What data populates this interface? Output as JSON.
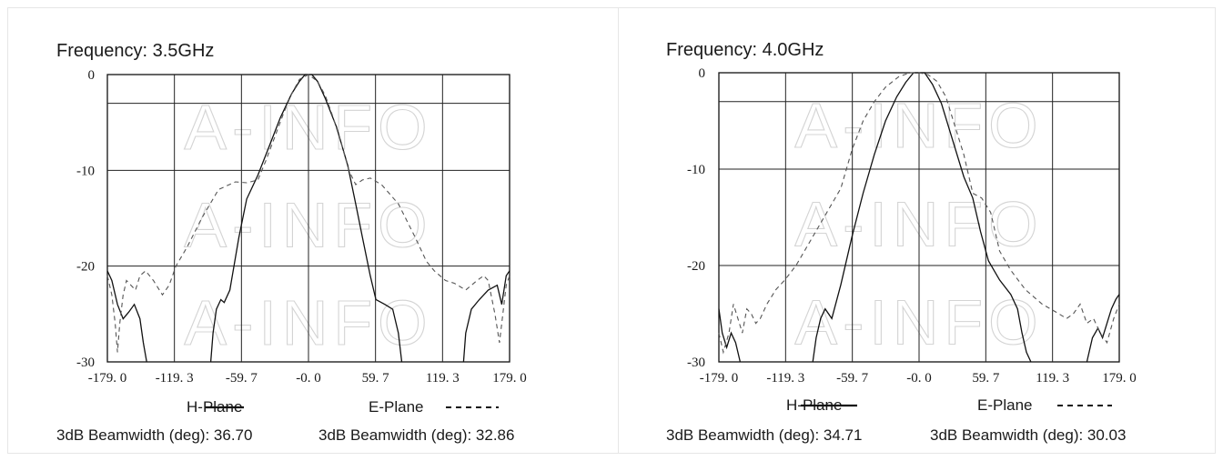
{
  "watermark": "A-INFO",
  "chart_data": [
    {
      "type": "line",
      "title": "Frequency: 3.5GHz",
      "x_ticks": [
        "-179. 0",
        "-119. 3",
        "-59. 7",
        "-0. 0",
        "59. 7",
        "119. 3",
        "179. 0"
      ],
      "y_ticks": [
        "0",
        "-10",
        "-20",
        "-30"
      ],
      "xlim": [
        -179.0,
        179.0
      ],
      "ylim": [
        -30,
        0
      ],
      "grid": true,
      "legend": {
        "h_label": "H-Plane",
        "e_label": "E-Plane"
      },
      "beamwidth": {
        "h_text": "3dB Beamwidth (deg): 36.70",
        "e_text": "3dB Beamwidth (deg): 32.86"
      },
      "series": [
        {
          "name": "H-Plane",
          "style": "solid",
          "segments": [
            [
              [
                -179,
                -20.5
              ],
              [
                -175,
                -21.5
              ],
              [
                -170,
                -24
              ],
              [
                -165,
                -25.5
              ],
              [
                -160,
                -24.8
              ],
              [
                -155,
                -24
              ],
              [
                -150,
                -25.5
              ],
              [
                -147,
                -28
              ],
              [
                -144,
                -30
              ]
            ],
            [
              [
                -87,
                -30
              ],
              [
                -85,
                -27
              ],
              [
                -82,
                -24.5
              ],
              [
                -78,
                -23.5
              ],
              [
                -75,
                -23.8
              ],
              [
                -70,
                -22.5
              ],
              [
                -62,
                -17
              ],
              [
                -55,
                -13
              ],
              [
                -45,
                -10.5
              ],
              [
                -35,
                -7.5
              ],
              [
                -25,
                -4.5
              ],
              [
                -15,
                -2
              ],
              [
                -8,
                -0.7
              ],
              [
                -3,
                0
              ],
              [
                0,
                0
              ],
              [
                3,
                0
              ],
              [
                8,
                -0.7
              ],
              [
                15,
                -2.5
              ],
              [
                25,
                -5.5
              ],
              [
                35,
                -9.5
              ],
              [
                42,
                -13.5
              ],
              [
                48,
                -17
              ],
              [
                55,
                -21
              ],
              [
                60,
                -23.5
              ],
              [
                68,
                -24
              ],
              [
                75,
                -24.5
              ],
              [
                80,
                -27
              ],
              [
                83,
                -30
              ]
            ],
            [
              [
                138,
                -30
              ],
              [
                140,
                -27
              ],
              [
                145,
                -24.5
              ],
              [
                152,
                -23.5
              ],
              [
                160,
                -22.5
              ],
              [
                168,
                -22
              ],
              [
                172,
                -24
              ],
              [
                176,
                -21
              ],
              [
                179,
                -20.5
              ]
            ]
          ]
        },
        {
          "name": "E-Plane",
          "style": "dashed",
          "segments": [
            [
              [
                -179,
                -21
              ],
              [
                -175,
                -23
              ],
              [
                -172,
                -26
              ],
              [
                -170,
                -29
              ],
              [
                -168,
                -26
              ],
              [
                -165,
                -23
              ],
              [
                -162,
                -21.5
              ],
              [
                -158,
                -22
              ],
              [
                -154,
                -22.5
              ],
              [
                -150,
                -21
              ],
              [
                -145,
                -20.5
              ],
              [
                -138,
                -21.5
              ],
              [
                -130,
                -23
              ],
              [
                -124,
                -22
              ],
              [
                -118,
                -20
              ],
              [
                -108,
                -18
              ],
              [
                -95,
                -15
              ],
              [
                -80,
                -12
              ],
              [
                -65,
                -11.2
              ],
              [
                -55,
                -11.3
              ],
              [
                -45,
                -11
              ],
              [
                -38,
                -9
              ],
              [
                -30,
                -6.5
              ],
              [
                -22,
                -4
              ],
              [
                -15,
                -2
              ],
              [
                -8,
                -0.5
              ],
              [
                0,
                0
              ],
              [
                8,
                -0.7
              ],
              [
                15,
                -2.2
              ],
              [
                22,
                -4.5
              ],
              [
                30,
                -7.5
              ],
              [
                36,
                -10
              ],
              [
                42,
                -11.5
              ],
              [
                48,
                -11
              ],
              [
                55,
                -10.8
              ],
              [
                65,
                -11.5
              ],
              [
                80,
                -13.5
              ],
              [
                95,
                -17
              ],
              [
                105,
                -19.5
              ],
              [
                112,
                -20.5
              ],
              [
                122,
                -21.5
              ],
              [
                130,
                -21.8
              ],
              [
                140,
                -22.5
              ],
              [
                150,
                -21.5
              ],
              [
                156,
                -21
              ],
              [
                160,
                -21.5
              ],
              [
                166,
                -25
              ],
              [
                170,
                -28
              ],
              [
                173,
                -25
              ],
              [
                176,
                -22
              ],
              [
                179,
                -21
              ]
            ]
          ]
        }
      ]
    },
    {
      "type": "line",
      "title": "Frequency: 4.0GHz",
      "x_ticks": [
        "-179. 0",
        "-119. 3",
        "-59. 7",
        "-0. 0",
        "59. 7",
        "119. 3",
        "179. 0"
      ],
      "y_ticks": [
        "0",
        "-10",
        "-20",
        "-30"
      ],
      "xlim": [
        -179.0,
        179.0
      ],
      "ylim": [
        -30,
        0
      ],
      "grid": true,
      "legend": {
        "h_label": "H-Plane",
        "e_label": "E-Plane"
      },
      "beamwidth": {
        "h_text": "3dB Beamwidth (deg): 34.71",
        "e_text": "3dB Beamwidth (deg): 30.03"
      },
      "series": [
        {
          "name": "H-Plane",
          "style": "solid",
          "segments": [
            [
              [
                -179,
                -24.5
              ],
              [
                -176,
                -27
              ],
              [
                -172,
                -28.5
              ],
              [
                -168,
                -27
              ],
              [
                -164,
                -28
              ],
              [
                -160,
                -30
              ]
            ],
            [
              [
                -95,
                -30
              ],
              [
                -92,
                -27.5
              ],
              [
                -88,
                -25.5
              ],
              [
                -84,
                -24.5
              ],
              [
                -78,
                -25.5
              ],
              [
                -70,
                -22
              ],
              [
                -60,
                -17
              ],
              [
                -50,
                -12.5
              ],
              [
                -40,
                -8.5
              ],
              [
                -30,
                -5
              ],
              [
                -20,
                -2.5
              ],
              [
                -12,
                -1
              ],
              [
                -5,
                0
              ],
              [
                0,
                0
              ],
              [
                5,
                0
              ],
              [
                12,
                -1.2
              ],
              [
                20,
                -3.2
              ],
              [
                30,
                -7
              ],
              [
                40,
                -10.8
              ],
              [
                48,
                -13
              ],
              [
                55,
                -16.5
              ],
              [
                62,
                -19.5
              ],
              [
                72,
                -21.5
              ],
              [
                82,
                -23
              ],
              [
                88,
                -24.5
              ],
              [
                92,
                -27
              ],
              [
                96,
                -29
              ],
              [
                100,
                -30
              ]
            ],
            [
              [
                150,
                -30
              ],
              [
                155,
                -27.5
              ],
              [
                160,
                -26.5
              ],
              [
                164,
                -27.5
              ],
              [
                168,
                -26
              ],
              [
                172,
                -24.5
              ],
              [
                176,
                -23.5
              ],
              [
                179,
                -23
              ]
            ]
          ]
        },
        {
          "name": "E-Plane",
          "style": "dashed",
          "segments": [
            [
              [
                -179,
                -27
              ],
              [
                -175,
                -29
              ],
              [
                -170,
                -27
              ],
              [
                -166,
                -24
              ],
              [
                -162,
                -25.5
              ],
              [
                -158,
                -27
              ],
              [
                -154,
                -24.5
              ],
              [
                -150,
                -25
              ],
              [
                -146,
                -26
              ],
              [
                -142,
                -25.5
              ],
              [
                -136,
                -24
              ],
              [
                -128,
                -22.5
              ],
              [
                -120,
                -21.5
              ],
              [
                -110,
                -20
              ],
              [
                -100,
                -18
              ],
              [
                -90,
                -16
              ],
              [
                -80,
                -14
              ],
              [
                -70,
                -12
              ],
              [
                -60,
                -8
              ],
              [
                -50,
                -5
              ],
              [
                -40,
                -3
              ],
              [
                -30,
                -1.5
              ],
              [
                -18,
                -0.4
              ],
              [
                -8,
                0
              ],
              [
                0,
                0
              ],
              [
                8,
                -0.2
              ],
              [
                16,
                -0.9
              ],
              [
                24,
                -2.5
              ],
              [
                32,
                -5.5
              ],
              [
                40,
                -8.5
              ],
              [
                48,
                -12.5
              ],
              [
                56,
                -13
              ],
              [
                64,
                -14.5
              ],
              [
                72,
                -18.5
              ],
              [
                82,
                -20.5
              ],
              [
                95,
                -22.5
              ],
              [
                110,
                -24
              ],
              [
                122,
                -24.8
              ],
              [
                132,
                -25.5
              ],
              [
                138,
                -25
              ],
              [
                144,
                -24
              ],
              [
                150,
                -26
              ],
              [
                156,
                -25.5
              ],
              [
                162,
                -27
              ],
              [
                168,
                -28
              ],
              [
                174,
                -25.5
              ],
              [
                179,
                -24
              ]
            ]
          ]
        }
      ]
    }
  ]
}
